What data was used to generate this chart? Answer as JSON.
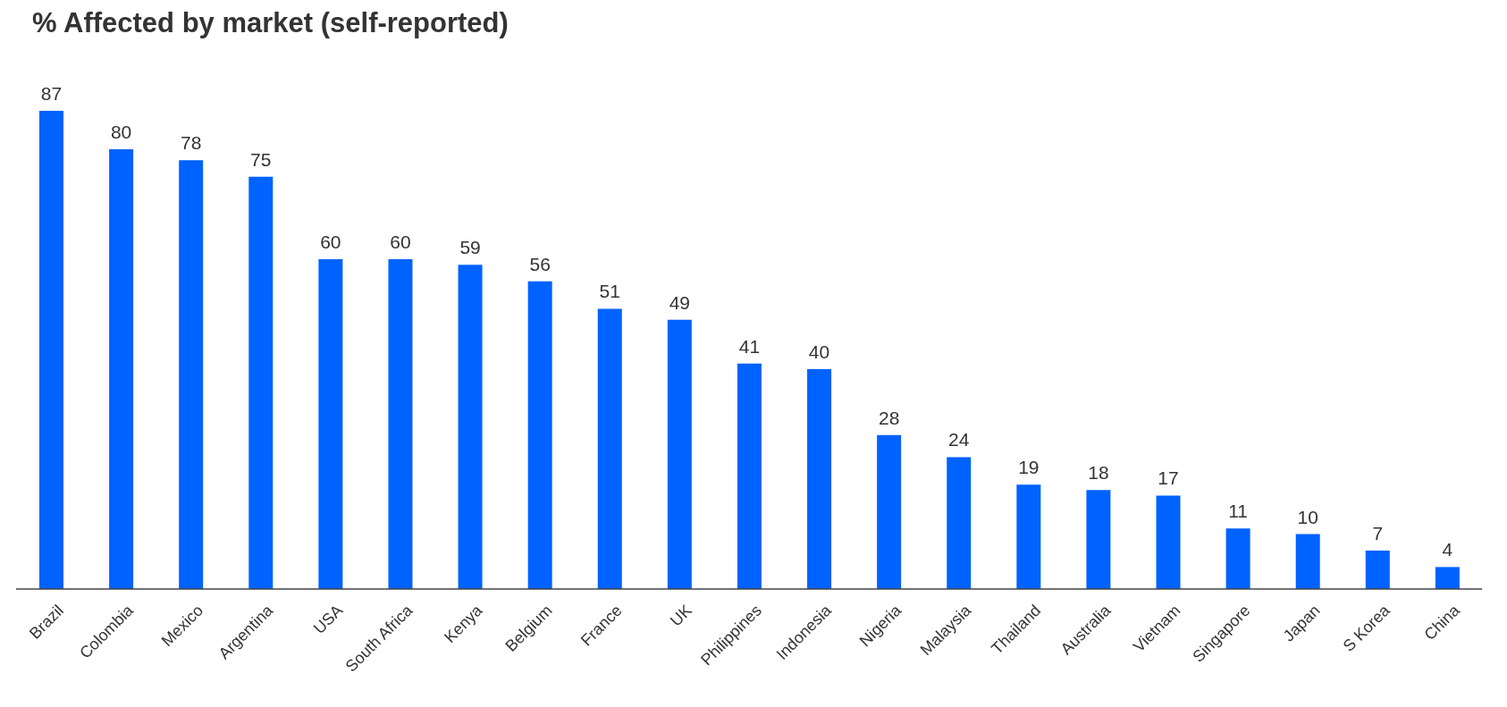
{
  "chart_data": {
    "type": "bar",
    "title": "% Affected by market (self-reported)",
    "categories": [
      "Brazil",
      "Colombia",
      "Mexico",
      "Argentina",
      "USA",
      "South Africa",
      "Kenya",
      "Belgium",
      "France",
      "UK",
      "Philippines",
      "Indonesia",
      "Nigeria",
      "Malaysia",
      "Thailand",
      "Australia",
      "Vietnam",
      "Singapore",
      "Japan",
      "S Korea",
      "China"
    ],
    "values": [
      87,
      80,
      78,
      75,
      60,
      60,
      59,
      56,
      51,
      49,
      41,
      40,
      28,
      24,
      19,
      18,
      17,
      11,
      10,
      7,
      4
    ],
    "color": "#0062ff",
    "data_labels": true
  }
}
